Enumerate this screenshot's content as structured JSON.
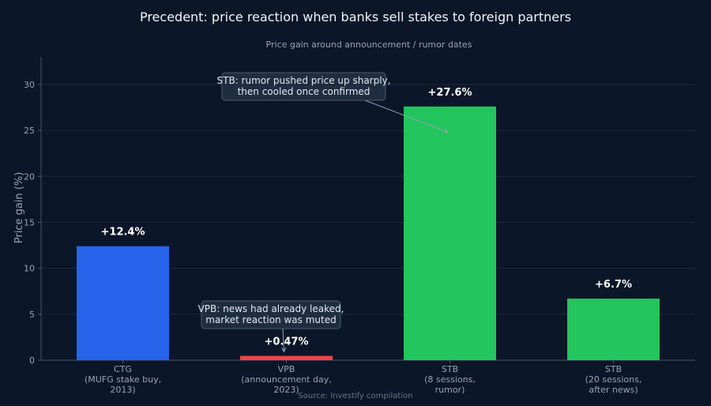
{
  "chart_data": {
    "type": "bar",
    "title": "Precedent: price reaction when banks sell stakes to foreign partners",
    "subtitle": "Price gain around announcement / rumor dates",
    "ylabel": "Price gain (%)",
    "ylim": [
      0,
      33
    ],
    "yticks": [
      0,
      5,
      10,
      15,
      20,
      25,
      30
    ],
    "grid": true,
    "categories": [
      [
        "CTG",
        "(MUFG stake buy,",
        "2013)"
      ],
      [
        "VPB",
        "(announcement day,",
        "2023)"
      ],
      [
        "STB",
        "(8 sessions,",
        "rumor)"
      ],
      [
        "STB",
        "(20 sessions,",
        "after news)"
      ]
    ],
    "values": [
      12.4,
      0.47,
      27.6,
      6.7
    ],
    "value_labels": [
      "+12.4%",
      "+0.47%",
      "+27.6%",
      "+6.7%"
    ],
    "bar_colors": [
      "#2563eb",
      "#ef4444",
      "#22c55e",
      "#22c55e"
    ],
    "annotations": [
      {
        "lines": [
          "STB: rumor pushed price up sharply,",
          "then cooled once confirmed"
        ],
        "target_index": 2,
        "target_value": 24.8
      },
      {
        "lines": [
          "VPB: news had already leaked,",
          "market reaction was muted"
        ],
        "target_index": 1,
        "target_value": 0.9
      }
    ],
    "source": "Source: Investify compilation"
  }
}
